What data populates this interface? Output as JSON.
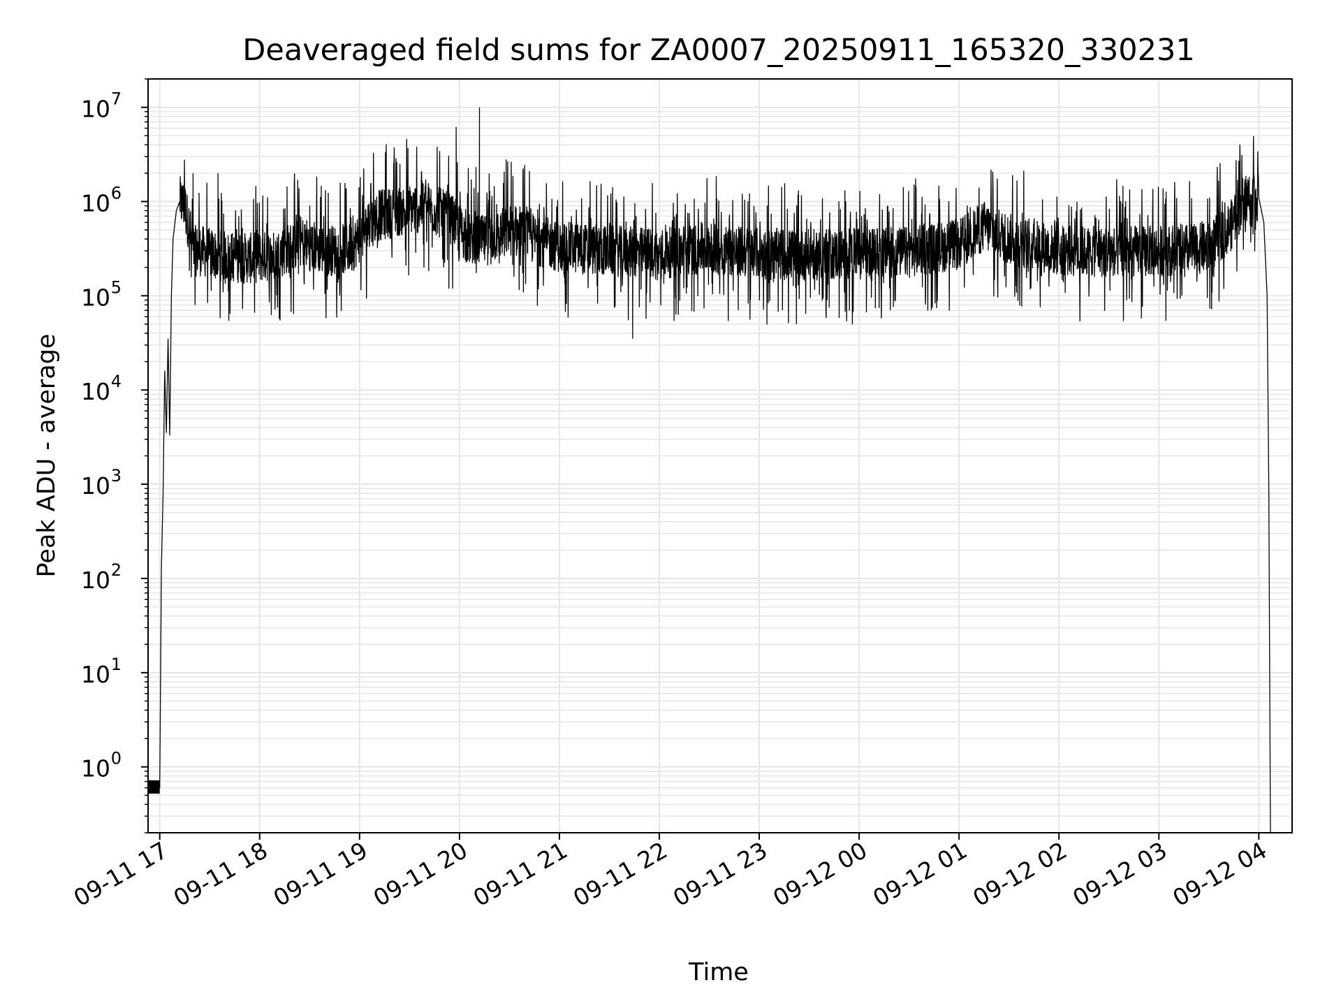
{
  "chart_data": {
    "type": "line",
    "title": "Deaveraged field sums for ZA0007_20250911_165320_330231",
    "xlabel": "Time",
    "ylabel": "Peak ADU - average",
    "y_scale": "log",
    "ylim": [
      0.2,
      20000000
    ],
    "xlim": [
      "2025-09-11 16:53",
      "2025-09-12 04:20"
    ],
    "grid": true,
    "grid_color": "#e6e6e6",
    "line_color": "#000000",
    "x_ticks": [
      "09-11 17",
      "09-11 18",
      "09-11 19",
      "09-11 20",
      "09-11 21",
      "09-11 22",
      "09-11 23",
      "09-12 00",
      "09-12 01",
      "09-12 02",
      "09-12 03",
      "09-12 04"
    ],
    "y_ticks": [
      {
        "value": 1,
        "base": "10",
        "exp": "0"
      },
      {
        "value": 10,
        "base": "10",
        "exp": "1"
      },
      {
        "value": 100,
        "base": "10",
        "exp": "2"
      },
      {
        "value": 1000,
        "base": "10",
        "exp": "3"
      },
      {
        "value": 10000,
        "base": "10",
        "exp": "4"
      },
      {
        "value": 100000,
        "base": "10",
        "exp": "5"
      },
      {
        "value": 1000000,
        "base": "10",
        "exp": "6"
      },
      {
        "value": 10000000,
        "base": "10",
        "exp": "7"
      }
    ],
    "series": [
      {
        "x": [
          "2025-09-11 16:53",
          "2025-09-11 17:00",
          "2025-09-11 17:01",
          "2025-09-11 17:02",
          "2025-09-11 17:03",
          "2025-09-11 17:04",
          "2025-09-11 17:05",
          "2025-09-11 17:06",
          "2025-09-11 17:07",
          "2025-09-11 17:08",
          "2025-09-11 17:10",
          "2025-09-11 17:12",
          "2025-09-11 17:15",
          "2025-09-11 17:18",
          "2025-09-11 17:20",
          "2025-09-11 17:25",
          "2025-09-11 17:30",
          "2025-09-11 17:40",
          "2025-09-11 17:55",
          "2025-09-11 18:10",
          "2025-09-11 18:25",
          "2025-09-11 18:40",
          "2025-09-11 18:55",
          "2025-09-11 19:10",
          "2025-09-11 19:25",
          "2025-09-11 19:40",
          "2025-09-11 19:55",
          "2025-09-11 20:05",
          "2025-09-11 20:15",
          "2025-09-11 20:30",
          "2025-09-11 20:45",
          "2025-09-11 21:00",
          "2025-09-11 21:30",
          "2025-09-11 22:00",
          "2025-09-11 22:30",
          "2025-09-11 23:00",
          "2025-09-11 23:30",
          "2025-09-12 00:00",
          "2025-09-12 00:30",
          "2025-09-12 01:00",
          "2025-09-12 01:15",
          "2025-09-12 01:30",
          "2025-09-12 02:00",
          "2025-09-12 02:30",
          "2025-09-12 03:00",
          "2025-09-12 03:30",
          "2025-09-12 03:45",
          "2025-09-12 03:50",
          "2025-09-12 03:55",
          "2025-09-12 04:00",
          "2025-09-12 04:03",
          "2025-09-12 04:05",
          "2025-09-12 04:06",
          "2025-09-12 04:07"
        ],
        "values": [
          0.6,
          0.6,
          130,
          800,
          16000,
          3500,
          35000,
          3300,
          100000,
          400000,
          800000,
          1000000,
          900000,
          500000,
          300000,
          300000,
          280000,
          260000,
          250000,
          270000,
          380000,
          300000,
          320000,
          700000,
          800000,
          900000,
          650000,
          400000,
          380000,
          500000,
          400000,
          330000,
          300000,
          280000,
          320000,
          280000,
          270000,
          280000,
          290000,
          350000,
          550000,
          400000,
          300000,
          290000,
          300000,
          320000,
          600000,
          1000000,
          1200000,
          1100000,
          600000,
          100000,
          1000,
          0.2
        ]
      }
    ],
    "spikes": [
      {
        "x": "2025-09-11 17:20",
        "y": 2000000
      },
      {
        "x": "2025-09-11 17:35",
        "y": 2000000
      },
      {
        "x": "2025-09-11 19:58",
        "y": 6200000
      },
      {
        "x": "2025-09-11 20:12",
        "y": 10000000
      },
      {
        "x": "2025-09-11 20:42",
        "y": 2100000
      },
      {
        "x": "2025-09-12 03:48",
        "y": 2700000
      },
      {
        "x": "2025-09-11 21:44",
        "y": 35000
      }
    ]
  }
}
